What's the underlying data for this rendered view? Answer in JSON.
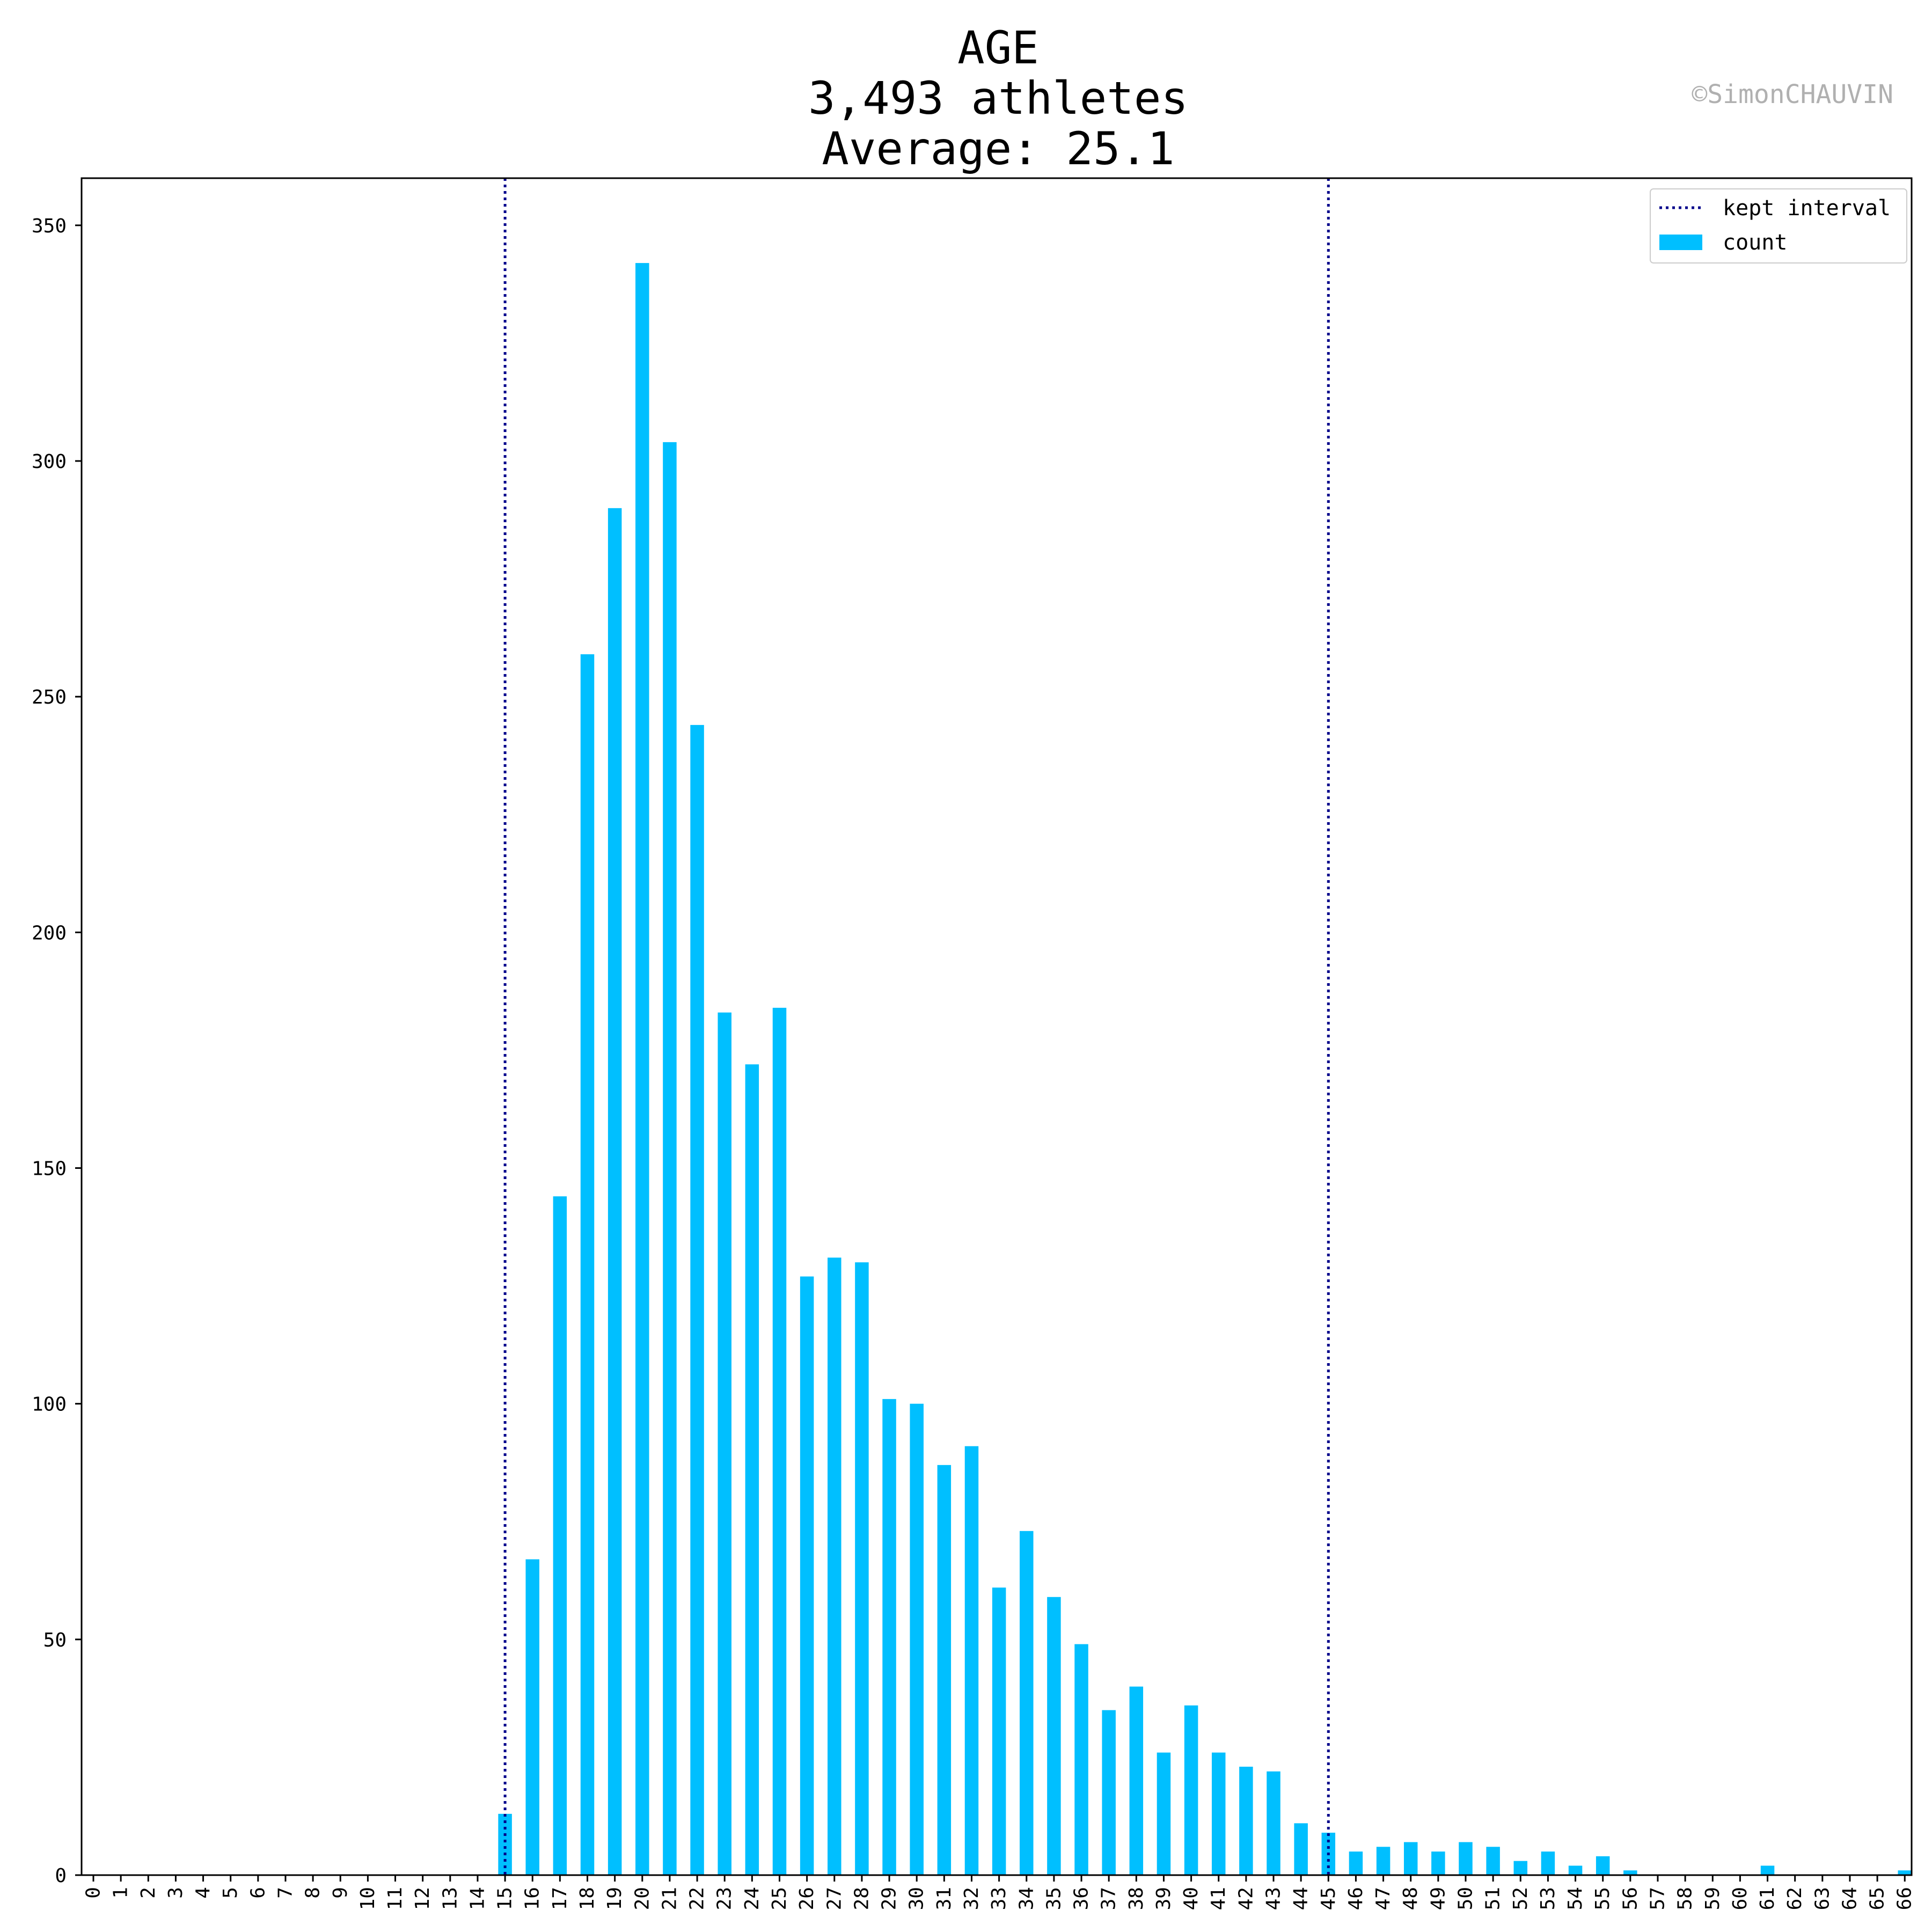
{
  "title_lines": [
    "AGE",
    "3,493 athletes",
    "Average: 25.1"
  ],
  "watermark": "©SimonCHAUVIN",
  "colors": {
    "bar": "#00bfff",
    "interval_line": "#00008b",
    "axes": "#000000",
    "watermark": "#b0b0b0"
  },
  "legend": {
    "placement": "top-right",
    "items": [
      {
        "label": "kept interval",
        "style": "dotted-line"
      },
      {
        "label": "count",
        "style": "patch"
      }
    ]
  },
  "chart_data": {
    "type": "bar",
    "title": "AGE\n3,493 athletes\nAverage: 25.1",
    "xlabel": "",
    "ylabel": "",
    "ylim": [
      0,
      360
    ],
    "yticks": [
      0,
      50,
      100,
      150,
      200,
      250,
      300,
      350
    ],
    "grid": false,
    "categories": [
      "0",
      "1",
      "2",
      "3",
      "4",
      "5",
      "6",
      "7",
      "8",
      "9",
      "10",
      "11",
      "12",
      "13",
      "14",
      "15",
      "16",
      "17",
      "18",
      "19",
      "20",
      "21",
      "22",
      "23",
      "24",
      "25",
      "26",
      "27",
      "28",
      "29",
      "30",
      "31",
      "32",
      "33",
      "34",
      "35",
      "36",
      "37",
      "38",
      "39",
      "40",
      "41",
      "42",
      "43",
      "44",
      "45",
      "46",
      "47",
      "48",
      "49",
      "50",
      "51",
      "52",
      "53",
      "54",
      "55",
      "56",
      "57",
      "58",
      "59",
      "60",
      "61",
      "62",
      "63",
      "64",
      "65",
      "66"
    ],
    "series": [
      {
        "name": "count",
        "values": [
          0,
          0,
          0,
          0,
          0,
          0,
          0,
          0,
          0,
          0,
          0,
          0,
          0,
          0,
          0,
          13,
          67,
          144,
          259,
          290,
          342,
          304,
          244,
          183,
          172,
          184,
          127,
          131,
          130,
          101,
          100,
          87,
          91,
          61,
          73,
          59,
          49,
          35,
          40,
          26,
          36,
          26,
          23,
          22,
          11,
          9,
          5,
          6,
          7,
          5,
          7,
          6,
          3,
          5,
          2,
          4,
          1,
          0,
          0,
          0,
          0,
          2,
          0,
          0,
          0,
          0,
          1
        ]
      }
    ],
    "kept_interval": [
      15,
      45
    ],
    "kept_interval_label": "kept interval"
  }
}
